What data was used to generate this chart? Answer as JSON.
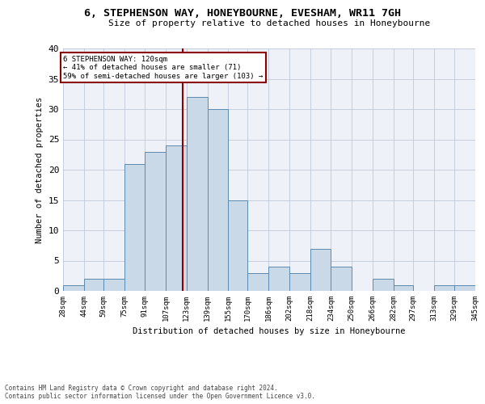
{
  "title_line1": "6, STEPHENSON WAY, HONEYBOURNE, EVESHAM, WR11 7GH",
  "title_line2": "Size of property relative to detached houses in Honeybourne",
  "xlabel": "Distribution of detached houses by size in Honeybourne",
  "ylabel": "Number of detached properties",
  "footer_line1": "Contains HM Land Registry data © Crown copyright and database right 2024.",
  "footer_line2": "Contains public sector information licensed under the Open Government Licence v3.0.",
  "annotation_line1": "6 STEPHENSON WAY: 120sqm",
  "annotation_line2": "← 41% of detached houses are smaller (71)",
  "annotation_line3": "59% of semi-detached houses are larger (103) →",
  "property_size": 120,
  "bar_color": "#c9d9e8",
  "bar_edge_color": "#5a8ab0",
  "vline_color": "#8b0000",
  "vline_x": 120,
  "grid_color": "#c0c8d8",
  "bg_color": "#eef2f8",
  "annotation_box_color": "#8b0000",
  "bins": [
    28,
    44,
    59,
    75,
    91,
    107,
    123,
    139,
    155,
    170,
    186,
    202,
    218,
    234,
    250,
    266,
    282,
    297,
    313,
    329,
    345
  ],
  "counts": [
    1,
    2,
    2,
    21,
    23,
    24,
    32,
    30,
    15,
    3,
    4,
    3,
    7,
    4,
    0,
    2,
    1,
    0,
    1,
    1
  ],
  "ylim": [
    0,
    40
  ],
  "yticks": [
    0,
    5,
    10,
    15,
    20,
    25,
    30,
    35,
    40
  ]
}
